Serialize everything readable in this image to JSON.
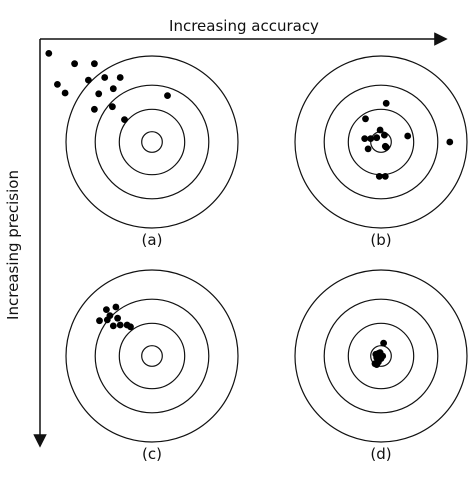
{
  "axes": {
    "x_label": "Increasing accuracy",
    "y_label": "Increasing precision"
  },
  "panels": [
    {
      "label": "(a)",
      "shots": [
        [
          -1.2,
          1.03
        ],
        [
          -0.9,
          0.91
        ],
        [
          -0.67,
          0.91
        ],
        [
          -1.1,
          0.67
        ],
        [
          -1.01,
          0.57
        ],
        [
          -0.74,
          0.72
        ],
        [
          -0.37,
          0.75
        ],
        [
          -0.45,
          0.62
        ],
        [
          -0.46,
          0.41
        ],
        [
          -0.32,
          0.26
        ],
        [
          -0.62,
          0.56
        ],
        [
          -0.67,
          0.38
        ],
        [
          -0.55,
          0.75
        ],
        [
          0.18,
          0.54
        ]
      ]
    },
    {
      "label": "(b)",
      "shots": [
        [
          0.06,
          0.45
        ],
        [
          -0.18,
          0.27
        ],
        [
          -0.12,
          0.04
        ],
        [
          -0.19,
          0.04
        ],
        [
          -0.15,
          -0.08
        ],
        [
          0.05,
          -0.05
        ],
        [
          0.06,
          -0.06
        ],
        [
          -0.05,
          0.05
        ],
        [
          0.04,
          0.08
        ],
        [
          -0.01,
          0.14
        ],
        [
          0.31,
          0.07
        ],
        [
          0.8,
          0.0
        ],
        [
          -0.02,
          -0.4
        ],
        [
          0.05,
          -0.4
        ]
      ]
    },
    {
      "label": "(c)",
      "shots": [
        [
          -0.53,
          0.54
        ],
        [
          -0.49,
          0.47
        ],
        [
          -0.42,
          0.57
        ],
        [
          -0.4,
          0.44
        ],
        [
          -0.61,
          0.41
        ],
        [
          -0.37,
          0.36
        ],
        [
          -0.29,
          0.36
        ],
        [
          -0.45,
          0.35
        ],
        [
          -0.25,
          0.34
        ],
        [
          -0.52,
          0.42
        ]
      ]
    },
    {
      "label": "(d)",
      "shots": [
        [
          0.03,
          0.15
        ],
        [
          -0.03,
          0.03
        ],
        [
          -0.06,
          0.02
        ],
        [
          -0.05,
          -0.02
        ],
        [
          0.0,
          -0.03
        ],
        [
          -0.03,
          -0.05
        ],
        [
          -0.03,
          -0.07
        ],
        [
          -0.05,
          -0.1
        ],
        [
          -0.07,
          -0.09
        ],
        [
          -0.02,
          -0.01
        ],
        [
          0.02,
          0.0
        ],
        [
          -0.01,
          0.04
        ]
      ]
    }
  ]
}
